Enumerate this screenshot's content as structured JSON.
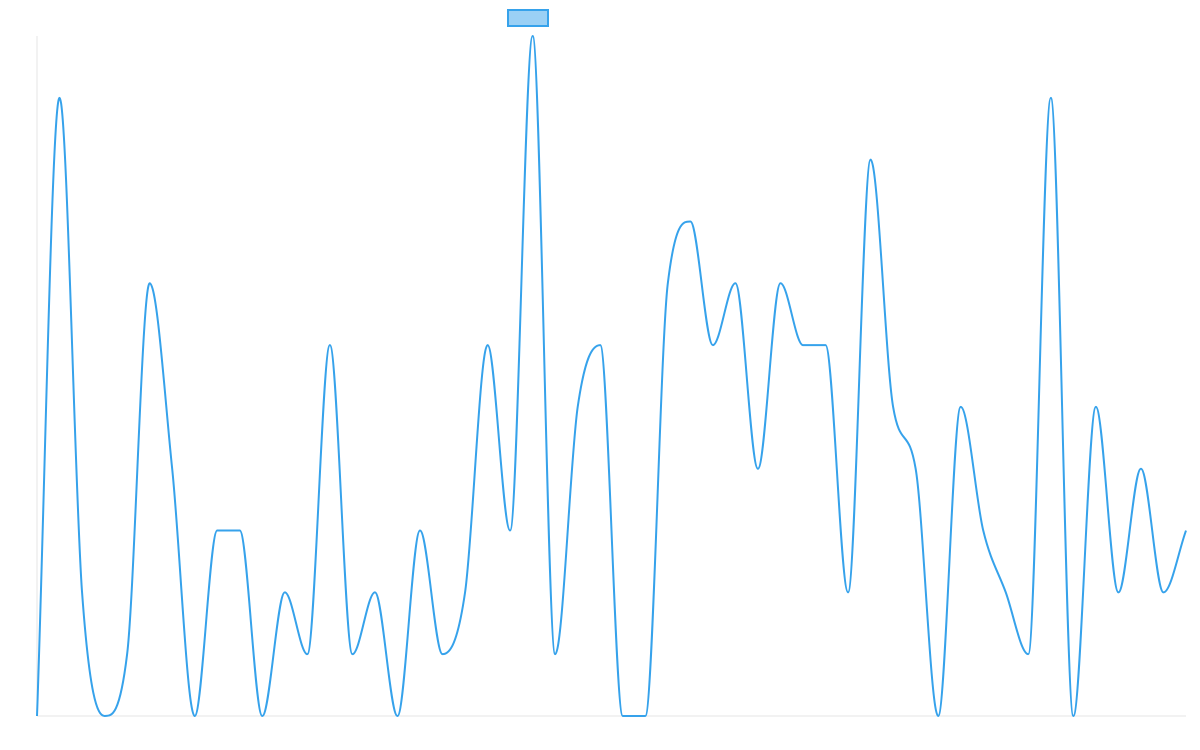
{
  "chart_data": {
    "type": "line",
    "series": [
      {
        "color": "#36a2eb",
        "values": [
          0,
          10,
          2,
          0,
          1,
          7,
          4,
          0,
          3,
          3,
          0,
          2,
          1,
          6,
          1,
          2,
          0,
          3,
          1,
          2,
          6,
          3,
          11,
          1,
          5,
          6,
          0,
          0,
          7,
          8,
          6,
          7,
          4,
          7,
          6,
          6,
          2,
          9,
          5,
          4,
          0,
          5,
          3,
          2,
          1,
          10,
          0,
          5,
          2,
          4,
          2,
          3
        ]
      }
    ],
    "ylim": [
      0,
      11
    ]
  }
}
